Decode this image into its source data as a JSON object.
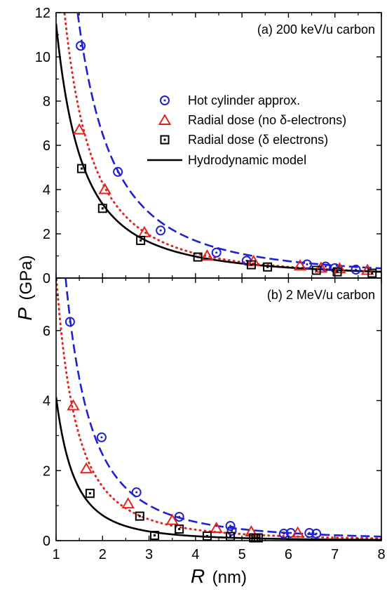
{
  "chart_data": {
    "type": "scatter",
    "xlabel": "R",
    "xunit": "(nm)",
    "ylabel": "P",
    "yunit": "(GPa)",
    "xlim": [
      1,
      8
    ],
    "xticks": [
      "1",
      "2",
      "3",
      "4",
      "5",
      "6",
      "7",
      "8"
    ],
    "legend": {
      "placement": "center-right of top panel",
      "entries": [
        {
          "label": "Hot cylinder approx.",
          "marker": "circle-dot",
          "color": "#1f1fd6",
          "line": "dashed"
        },
        {
          "label": "Radial dose (no δ-electrons)",
          "marker": "triangle",
          "color": "#e3241b",
          "line": "dotted"
        },
        {
          "label": "Radial dose (δ electrons)",
          "marker": "square",
          "color": "#000000"
        },
        {
          "label": "Hydrodynamic model",
          "marker": "none",
          "color": "#000000",
          "line": "solid"
        }
      ]
    },
    "panels": [
      {
        "title": "(a) 200 keV/u carbon",
        "ylim": [
          0,
          12
        ],
        "yticks": [
          "0",
          "2",
          "4",
          "6",
          "8",
          "10",
          "12"
        ],
        "series": [
          {
            "name": "Hot cylinder approx.",
            "kind": "points",
            "color": "#1f1fd6",
            "x": [
              1.53,
              2.33,
              3.25,
              4.45,
              5.1,
              6.4,
              6.8,
              7.0,
              7.45
            ],
            "y": [
              10.5,
              4.8,
              2.15,
              1.15,
              0.78,
              0.62,
              0.52,
              0.45,
              0.38
            ]
          },
          {
            "name": "Radial dose (no δ-electrons)",
            "kind": "points",
            "color": "#e3241b",
            "x": [
              1.5,
              2.05,
              2.9,
              4.25,
              5.25,
              6.25,
              6.7,
              7.1,
              7.7
            ],
            "y": [
              6.7,
              4.0,
              2.05,
              1.0,
              0.75,
              0.55,
              0.45,
              0.42,
              0.35
            ]
          },
          {
            "name": "Radial dose (δ electrons)",
            "kind": "points",
            "color": "#000000",
            "x": [
              1.55,
              2.0,
              2.82,
              4.05,
              5.2,
              5.55,
              6.6,
              7.05,
              7.8
            ],
            "y": [
              4.95,
              3.15,
              1.7,
              0.95,
              0.6,
              0.5,
              0.35,
              0.28,
              0.22
            ]
          },
          {
            "name": "Hot cylinder approx.",
            "kind": "fit",
            "style": "dashed",
            "color": "#1f1fd6",
            "coef": 25.2,
            "power": 1.95
          },
          {
            "name": "Radial dose (no δ-electrons)",
            "kind": "fit",
            "style": "dotted",
            "color": "#e3241b",
            "coef": 16.6,
            "power": 1.95
          },
          {
            "name": "Hydrodynamic model",
            "kind": "fit",
            "style": "solid",
            "color": "#000000",
            "coef": 11.5,
            "power": 1.78
          }
        ]
      },
      {
        "title": "(b) 2 MeV/u carbon",
        "ylim": [
          0,
          7.5
        ],
        "yticks": [
          "0",
          "2",
          "4",
          "6"
        ],
        "series": [
          {
            "name": "Hot cylinder approx.",
            "kind": "points",
            "color": "#1f1fd6",
            "x": [
              1.3,
              1.98,
              2.73,
              3.65,
              4.75,
              6.05,
              6.45,
              6.6
            ],
            "y": [
              6.25,
              2.95,
              1.38,
              0.68,
              0.42,
              0.22,
              0.22,
              0.2
            ]
          },
          {
            "name": "Hot cylinder approx.",
            "kind": "points",
            "color": "#1f1fd6",
            "x": [
              4.78,
              5.9
            ],
            "y": [
              0.28,
              0.2
            ]
          },
          {
            "name": "Radial dose (no δ-electrons)",
            "kind": "points",
            "color": "#e3241b",
            "x": [
              1.37,
              1.65,
              2.55,
              3.5,
              4.45,
              5.2,
              6.2
            ],
            "y": [
              3.85,
              2.05,
              1.05,
              0.58,
              0.35,
              0.25,
              0.22
            ]
          },
          {
            "name": "Radial dose (δ electrons)",
            "kind": "points",
            "color": "#000000",
            "x": [
              1.73,
              2.8,
              3.12,
              3.65,
              4.25,
              4.75,
              5.25,
              5.3,
              5.35
            ],
            "y": [
              1.35,
              0.7,
              0.15,
              0.33,
              0.13,
              0.12,
              0.08,
              0.08,
              0.08
            ]
          },
          {
            "name": "Hot cylinder approx.",
            "kind": "fit",
            "style": "dashed",
            "color": "#1f1fd6",
            "coef": 11.3,
            "power": 2.2
          },
          {
            "name": "Radial dose (no δ-electrons)",
            "kind": "fit",
            "style": "dotted",
            "color": "#e3241b",
            "coef": 7.6,
            "power": 2.3
          },
          {
            "name": "Hydrodynamic model",
            "kind": "fit",
            "style": "solid",
            "color": "#000000",
            "coef": 4.1,
            "power": 2.5
          }
        ]
      }
    ]
  }
}
